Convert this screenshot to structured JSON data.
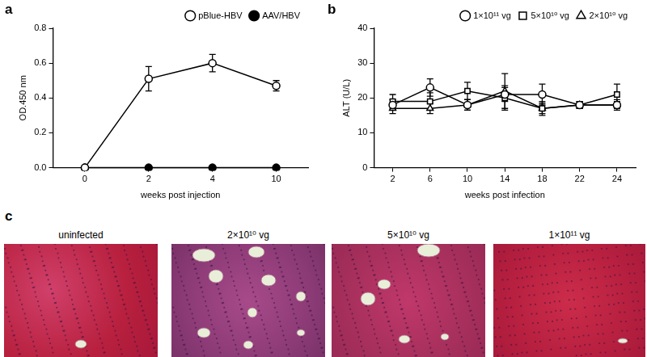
{
  "chart_data": [
    {
      "type": "line",
      "categories": [
        0,
        2,
        4,
        10
      ],
      "x_label": "weeks post injection",
      "y_label": "OD.450 nm",
      "ylim": [
        0,
        0.8
      ],
      "yticks": [
        {
          "value": 0,
          "label": "0.0"
        },
        {
          "value": 0.2,
          "label": "0.2"
        },
        {
          "value": 0.4,
          "label": "0.4"
        },
        {
          "value": 0.6,
          "label": "0.6"
        },
        {
          "value": 0.8,
          "label": "0.8"
        }
      ],
      "grid": false,
      "legend": "top-right",
      "series": [
        {
          "name": "pBlue-HBV",
          "color": "#000000",
          "marker": "circle_open",
          "line_style": "solid",
          "values": [
            0,
            0.51,
            0.6,
            0.47
          ],
          "error": [
            0,
            0.07,
            0.05,
            0.03
          ]
        },
        {
          "name": "AAV/HBV",
          "color": "#000000",
          "marker": "circle",
          "line_style": "solid",
          "values": [
            0,
            0,
            0,
            0
          ],
          "error": [
            0,
            0,
            0,
            0
          ]
        }
      ]
    },
    {
      "type": "line",
      "categories": [
        2,
        6,
        10,
        14,
        18,
        22,
        24
      ],
      "x_label": "weeks post infection",
      "y_label": "ALT (U/L)",
      "ylim": [
        0,
        40
      ],
      "yticks": [
        0,
        10,
        20,
        30,
        40
      ],
      "grid": false,
      "legend": "top-right",
      "series": [
        {
          "name": "1×10¹¹ vg",
          "color": "#000000",
          "marker": "circle_open",
          "line_style": "solid",
          "values": [
            18,
            23,
            18,
            21,
            21,
            18,
            18
          ],
          "error": [
            1.5,
            2.5,
            1.5,
            2,
            3,
            1,
            1.5
          ]
        },
        {
          "name": "5×10¹⁰ vg",
          "color": "#000000",
          "marker": "square_open",
          "line_style": "solid",
          "values": [
            19,
            19,
            22,
            20,
            17,
            18,
            21
          ],
          "error": [
            2,
            2.5,
            2.5,
            3.5,
            2,
            1,
            3
          ]
        },
        {
          "name": "2×10¹⁰ vg",
          "color": "#000000",
          "marker": "triangle_open",
          "line_style": "solid",
          "values": [
            17,
            17,
            18,
            22,
            17,
            18,
            18
          ],
          "error": [
            1.5,
            1.5,
            1.5,
            5,
            1.5,
            1,
            1
          ]
        }
      ]
    }
  ],
  "panel_labels": [
    "a",
    "b",
    "c"
  ],
  "images": [
    {
      "title": "uninfected"
    },
    {
      "title": "2×10¹⁰ vg"
    },
    {
      "title": "5×10¹⁰ vg"
    },
    {
      "title": "1×10¹¹ vg"
    }
  ]
}
